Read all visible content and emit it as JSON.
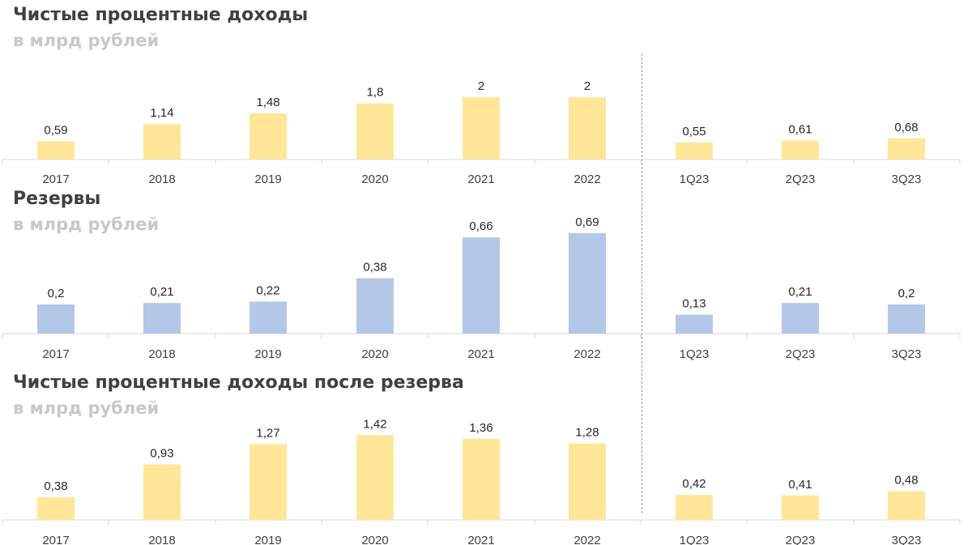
{
  "colors": {
    "yellow": "#ffe699",
    "blue": "#b4c7e7",
    "axis": "#d9d9d9"
  },
  "chart_data": [
    {
      "type": "bar",
      "title": "Чистые процентные доходы",
      "subtitle": "в млрд рублей",
      "categories": [
        "2017",
        "2018",
        "2019",
        "2020",
        "2021",
        "2022",
        "1Q23",
        "2Q23",
        "3Q23"
      ],
      "series": [
        {
          "values_annual": [
            0.59,
            1.14,
            1.48,
            1.8,
            2,
            2
          ],
          "values_quarterly": [
            0.55,
            0.61,
            0.68
          ]
        }
      ],
      "labels": [
        "0,59",
        "1,14",
        "1,48",
        "1,8",
        "2",
        "2",
        "0,55",
        "0,61",
        "0,68"
      ],
      "color": "yellow"
    },
    {
      "type": "bar",
      "title": "Резервы",
      "subtitle": "в млрд рублей",
      "categories": [
        "2017",
        "2018",
        "2019",
        "2020",
        "2021",
        "2022",
        "1Q23",
        "2Q23",
        "3Q23"
      ],
      "series": [
        {
          "values_annual": [
            0.2,
            0.21,
            0.22,
            0.38,
            0.66,
            0.69
          ],
          "values_quarterly": [
            0.13,
            0.21,
            0.2
          ]
        }
      ],
      "labels": [
        "0,2",
        "0,21",
        "0,22",
        "0,38",
        "0,66",
        "0,69",
        "0,13",
        "0,21",
        "0,2"
      ],
      "color": "blue"
    },
    {
      "type": "bar",
      "title": "Чистые процентные доходы после резерва",
      "subtitle": "в млрд рублей",
      "categories": [
        "2017",
        "2018",
        "2019",
        "2020",
        "2021",
        "2022",
        "1Q23",
        "2Q23",
        "3Q23"
      ],
      "series": [
        {
          "values_annual": [
            0.38,
            0.93,
            1.27,
            1.42,
            1.36,
            1.28
          ],
          "values_quarterly": [
            0.42,
            0.41,
            0.48
          ]
        }
      ],
      "labels": [
        "0,38",
        "0,93",
        "1,27",
        "1,42",
        "1,36",
        "1,28",
        "0,42",
        "0,41",
        "0,48"
      ],
      "color": "yellow"
    }
  ]
}
